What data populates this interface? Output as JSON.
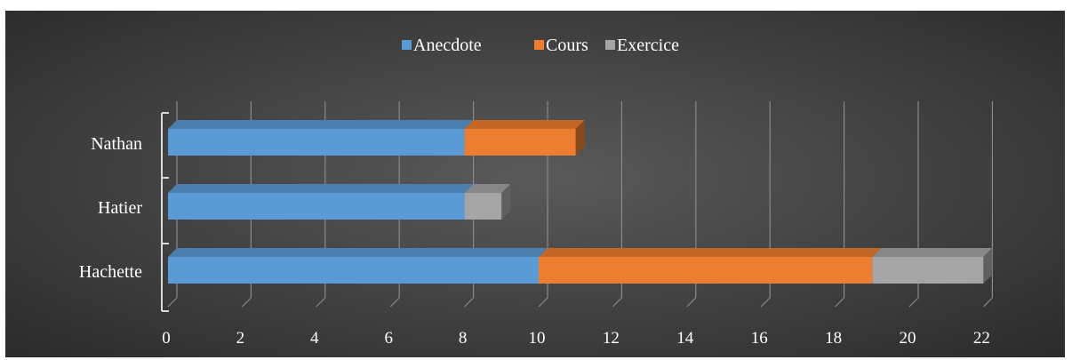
{
  "chart_data": {
    "type": "bar",
    "orientation": "horizontal",
    "stacked": true,
    "style_3d": true,
    "title": "",
    "xlabel": "",
    "ylabel": "",
    "categories": [
      "Hachette",
      "Hatier",
      "Nathan"
    ],
    "series": [
      {
        "name": "Anecdote",
        "values": [
          10,
          8,
          8
        ],
        "color": "#5b9bd5"
      },
      {
        "name": "Cours",
        "values": [
          9,
          0,
          3
        ],
        "color": "#ed7d31"
      },
      {
        "name": "Exercice",
        "values": [
          3,
          1,
          0
        ],
        "color": "#a5a5a5"
      }
    ],
    "xlim": [
      0,
      22
    ],
    "xticks": [
      "0",
      "2",
      "4",
      "6",
      "8",
      "10",
      "12",
      "14",
      "16",
      "18",
      "20",
      "22"
    ],
    "grid": true,
    "legend_position": "top"
  }
}
